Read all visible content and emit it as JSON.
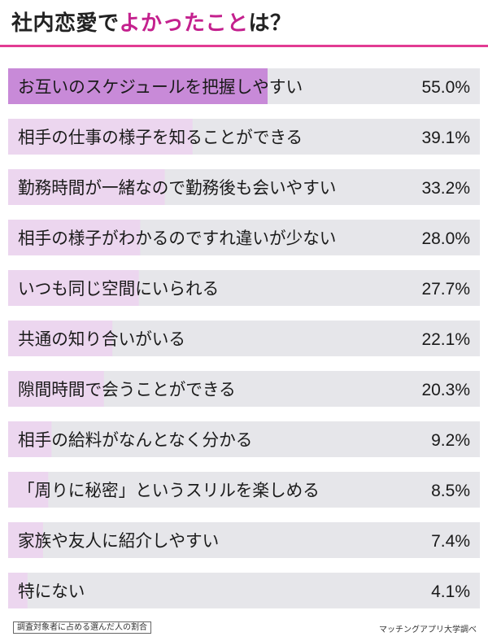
{
  "title": {
    "prefix": "社内恋愛で",
    "accent": "よかったこと",
    "suffix": "は？"
  },
  "footnote": "調査対象者に占める選んだ人の割合",
  "source": "マッチングアプリ大学調べ",
  "colors": {
    "accent": "#c4218e",
    "rule": "#e23b93",
    "top_bar": "#c88ad8",
    "bar": "#ecd6ef",
    "track": "#e6e6ea"
  },
  "chart_data": {
    "type": "bar",
    "orientation": "horizontal",
    "categories": [
      "お互いのスケジュールを把握しやすい",
      "相手の仕事の様子を知ることができる",
      "勤務時間が一緒なので勤務後も会いやすい",
      "相手の様子がわかるのですれ違いが少ない",
      "いつも同じ空間にいられる",
      "共通の知り合いがいる",
      "隙間時間で会うことができる",
      "相手の給料がなんとなく分かる",
      "「周りに秘密」というスリルを楽しめる",
      "家族や友人に紹介しやすい",
      "特にない"
    ],
    "values": [
      55.0,
      39.1,
      33.2,
      28.0,
      27.7,
      22.1,
      20.3,
      9.2,
      8.5,
      7.4,
      4.1
    ],
    "value_labels": [
      "55.0%",
      "39.1%",
      "33.2%",
      "28.0%",
      "27.7%",
      "22.1%",
      "20.3%",
      "9.2%",
      "8.5%",
      "7.4%",
      "4.1%"
    ],
    "xlim": [
      0,
      100
    ],
    "grid": false,
    "legend": "none"
  }
}
